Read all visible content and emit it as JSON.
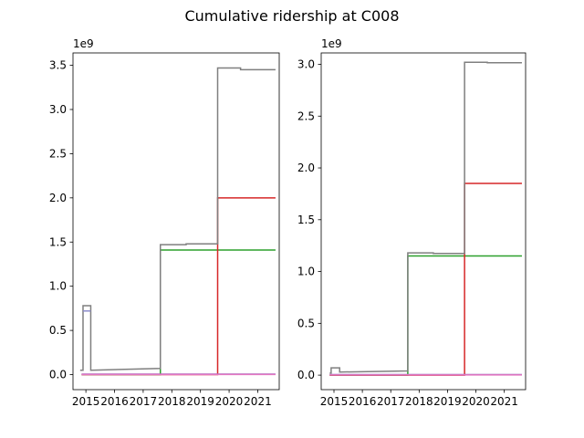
{
  "figure": {
    "title": "Cumulative ridership at C008"
  },
  "chart_data": [
    {
      "type": "line",
      "title": "",
      "xlabel": "",
      "ylabel": "",
      "y_scale_label": "1e9",
      "xlim": [
        2014.55,
        2021.75
      ],
      "ylim": [
        -0.17,
        3.64
      ],
      "x_ticks": [
        2015,
        2016,
        2017,
        2018,
        2019,
        2020,
        2021
      ],
      "x_tick_labels": [
        "2015",
        "2016",
        "2017",
        "2018",
        "2019",
        "2020",
        "2021"
      ],
      "y_ticks": [
        0.0,
        0.5,
        1.0,
        1.5,
        2.0,
        2.5,
        3.0,
        3.5
      ],
      "y_tick_labels": [
        "0.0",
        "0.5",
        "1.0",
        "1.5",
        "2.0",
        "2.5",
        "3.0",
        "3.5"
      ],
      "grid": false,
      "series": [
        {
          "color": "#2ca02c",
          "x": [
            2014.85,
            2017.6,
            2017.6,
            2021.62
          ],
          "y": [
            0.0,
            0.0,
            1.41,
            1.41
          ]
        },
        {
          "color": "#d62728",
          "x": [
            2014.85,
            2019.6,
            2019.6,
            2021.62
          ],
          "y": [
            0.0,
            0.0,
            2.0,
            2.0
          ]
        },
        {
          "color": "#9467bd",
          "x": [
            2014.85,
            2021.62
          ],
          "y": [
            0.005,
            0.005
          ]
        },
        {
          "color": "#e377c2",
          "x": [
            2014.85,
            2021.62
          ],
          "y": [
            0.002,
            0.002
          ]
        },
        {
          "color": "#7f7f7f",
          "x": [
            2014.8,
            2014.9,
            2014.9,
            2015.17,
            2015.17,
            2017.6,
            2017.6,
            2018.5,
            2018.5,
            2019.6,
            2019.6,
            2020.4,
            2020.4,
            2021.62
          ],
          "y": [
            0.05,
            0.05,
            0.78,
            0.78,
            0.05,
            0.07,
            1.47,
            1.47,
            1.48,
            1.48,
            3.47,
            3.47,
            3.45,
            3.45
          ]
        },
        {
          "color": "#8c8ccc",
          "x": [
            2014.9,
            2015.17
          ],
          "y": [
            0.72,
            0.72
          ]
        }
      ]
    },
    {
      "type": "line",
      "title": "",
      "xlabel": "",
      "ylabel": "",
      "y_scale_label": "1e9",
      "xlim": [
        2014.55,
        2021.75
      ],
      "ylim": [
        -0.14,
        3.11
      ],
      "x_ticks": [
        2015,
        2016,
        2017,
        2018,
        2019,
        2020,
        2021
      ],
      "x_tick_labels": [
        "2015",
        "2016",
        "2017",
        "2018",
        "2019",
        "2020",
        "2021"
      ],
      "y_ticks": [
        0.0,
        0.5,
        1.0,
        1.5,
        2.0,
        2.5,
        3.0
      ],
      "y_tick_labels": [
        "0.0",
        "0.5",
        "1.0",
        "1.5",
        "2.0",
        "2.5",
        "3.0"
      ],
      "grid": false,
      "series": [
        {
          "color": "#2ca02c",
          "x": [
            2014.85,
            2017.6,
            2017.6,
            2021.62
          ],
          "y": [
            0.0,
            0.0,
            1.15,
            1.15
          ]
        },
        {
          "color": "#d62728",
          "x": [
            2014.85,
            2019.6,
            2019.6,
            2021.62
          ],
          "y": [
            0.0,
            0.0,
            1.85,
            1.85
          ]
        },
        {
          "color": "#9467bd",
          "x": [
            2014.85,
            2021.62
          ],
          "y": [
            0.005,
            0.005
          ]
        },
        {
          "color": "#e377c2",
          "x": [
            2014.85,
            2021.62
          ],
          "y": [
            0.002,
            0.002
          ]
        },
        {
          "color": "#7f7f7f",
          "x": [
            2014.85,
            2014.9,
            2014.9,
            2015.2,
            2015.2,
            2017.6,
            2017.6,
            2018.5,
            2018.5,
            2019.6,
            2019.6,
            2020.4,
            2020.4,
            2021.62
          ],
          "y": [
            0.02,
            0.02,
            0.07,
            0.07,
            0.03,
            0.04,
            1.18,
            1.18,
            1.175,
            1.175,
            3.02,
            3.02,
            3.015,
            3.015
          ]
        }
      ]
    }
  ]
}
